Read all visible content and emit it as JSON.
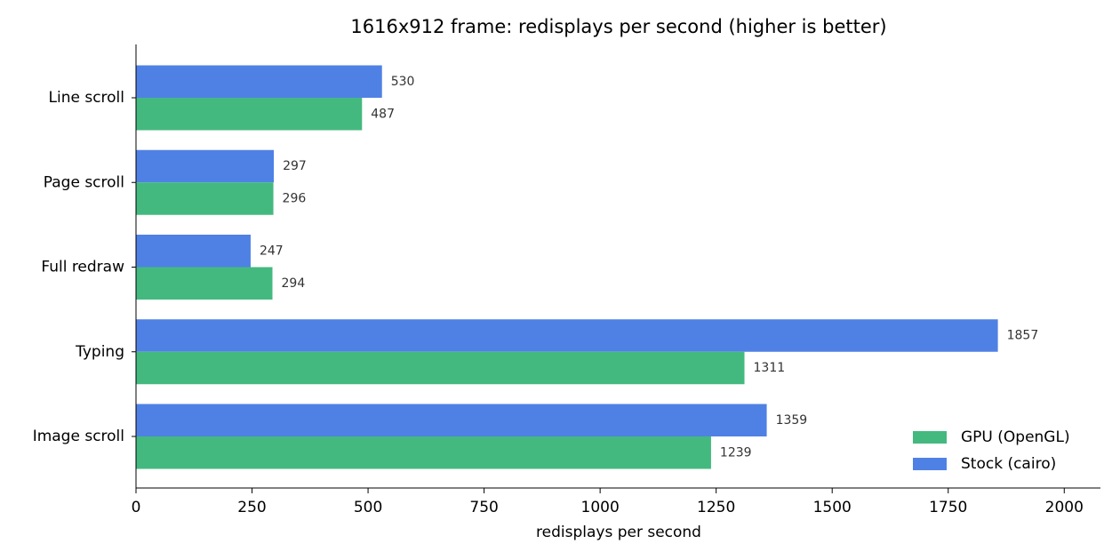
{
  "chart_data": {
    "type": "hbar",
    "title": "1616x912 frame: redisplays per second (higher is better)",
    "x_label": "redisplays per second",
    "categories": [
      "Line scroll",
      "Page scroll",
      "Full redraw",
      "Typing",
      "Image scroll"
    ],
    "series": [
      {
        "name": "GPU (OpenGL)",
        "color": "#43b97f",
        "values": [
          487,
          296,
          294,
          1311,
          1239
        ]
      },
      {
        "name": "Stock (cairo)",
        "color": "#4f81e5",
        "values": [
          530,
          297,
          247,
          1857,
          1359
        ]
      }
    ],
    "xlim": [
      0,
      2078
    ],
    "xticks": [
      0,
      250,
      500,
      750,
      1000,
      1250,
      1500,
      1750,
      2000
    ],
    "legend": "lower right"
  }
}
